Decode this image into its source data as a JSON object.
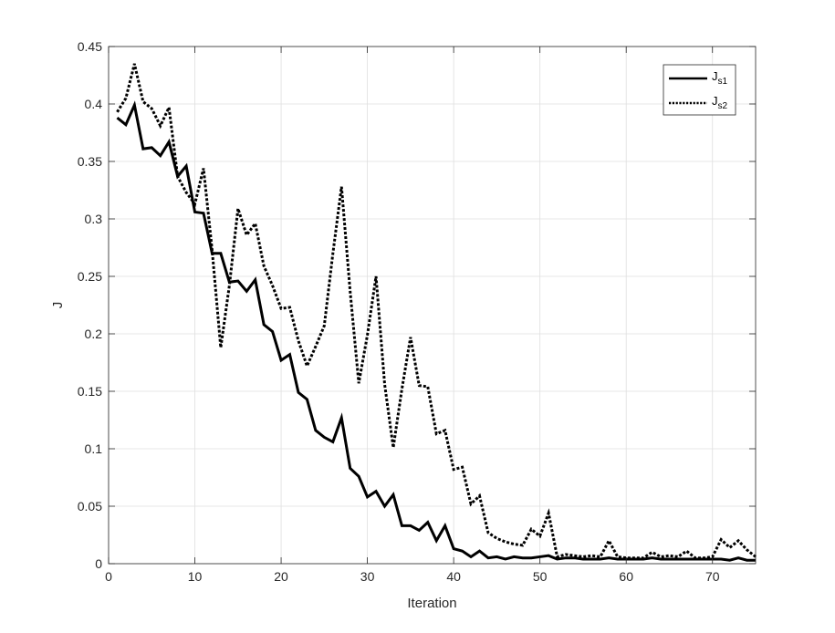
{
  "chart_data": {
    "type": "line",
    "xlabel": "Iteration",
    "ylabel": "J",
    "xlim": [
      0,
      75
    ],
    "ylim": [
      0,
      0.45
    ],
    "xticks": [
      0,
      10,
      20,
      30,
      40,
      50,
      60,
      70
    ],
    "yticks": [
      0,
      0.05,
      0.1,
      0.15,
      0.2,
      0.25,
      0.3,
      0.35,
      0.4,
      0.45
    ],
    "xtick_labels": [
      "0",
      "10",
      "20",
      "30",
      "40",
      "50",
      "60",
      "70"
    ],
    "ytick_labels": [
      "0",
      "0.05",
      "0.1",
      "0.15",
      "0.2",
      "0.25",
      "0.3",
      "0.35",
      "0.4",
      "0.45"
    ],
    "grid": true,
    "legend_position": "top-right",
    "x": [
      1,
      2,
      3,
      4,
      5,
      6,
      7,
      8,
      9,
      10,
      11,
      12,
      13,
      14,
      15,
      16,
      17,
      18,
      19,
      20,
      21,
      22,
      23,
      24,
      25,
      26,
      27,
      28,
      29,
      30,
      31,
      32,
      33,
      34,
      35,
      36,
      37,
      38,
      39,
      40,
      41,
      42,
      43,
      44,
      45,
      46,
      47,
      48,
      49,
      50,
      51,
      52,
      53,
      54,
      55,
      56,
      57,
      58,
      59,
      60,
      61,
      62,
      63,
      64,
      65,
      66,
      67,
      68,
      69,
      70,
      71,
      72,
      73,
      74,
      75
    ],
    "series": [
      {
        "legend_main": "J",
        "legend_sub": "s1",
        "style": "solid",
        "color": "#000000",
        "values": [
          0.388,
          0.382,
          0.399,
          0.361,
          0.362,
          0.355,
          0.367,
          0.337,
          0.346,
          0.306,
          0.305,
          0.27,
          0.27,
          0.245,
          0.246,
          0.237,
          0.247,
          0.208,
          0.202,
          0.177,
          0.182,
          0.149,
          0.143,
          0.116,
          0.11,
          0.106,
          0.127,
          0.083,
          0.076,
          0.058,
          0.063,
          0.05,
          0.06,
          0.033,
          0.033,
          0.029,
          0.036,
          0.02,
          0.033,
          0.013,
          0.011,
          0.006,
          0.011,
          0.005,
          0.006,
          0.004,
          0.006,
          0.005,
          0.005,
          0.006,
          0.007,
          0.004,
          0.005,
          0.005,
          0.004,
          0.004,
          0.004,
          0.005,
          0.004,
          0.004,
          0.004,
          0.004,
          0.005,
          0.004,
          0.004,
          0.004,
          0.004,
          0.004,
          0.004,
          0.004,
          0.004,
          0.003,
          0.005,
          0.003,
          0.003
        ]
      },
      {
        "legend_main": "J",
        "legend_sub": "s2",
        "style": "dotted",
        "color": "#000000",
        "values": [
          0.393,
          0.405,
          0.435,
          0.402,
          0.396,
          0.381,
          0.397,
          0.337,
          0.323,
          0.313,
          0.344,
          0.273,
          0.188,
          0.242,
          0.309,
          0.286,
          0.296,
          0.259,
          0.242,
          0.222,
          0.223,
          0.194,
          0.172,
          0.189,
          0.207,
          0.27,
          0.328,
          0.237,
          0.157,
          0.199,
          0.25,
          0.156,
          0.101,
          0.152,
          0.197,
          0.155,
          0.154,
          0.113,
          0.116,
          0.082,
          0.084,
          0.052,
          0.059,
          0.027,
          0.022,
          0.019,
          0.017,
          0.016,
          0.03,
          0.024,
          0.044,
          0.006,
          0.008,
          0.007,
          0.006,
          0.007,
          0.006,
          0.02,
          0.006,
          0.005,
          0.005,
          0.005,
          0.01,
          0.006,
          0.007,
          0.006,
          0.011,
          0.005,
          0.005,
          0.006,
          0.021,
          0.014,
          0.02,
          0.012,
          0.006
        ]
      }
    ]
  }
}
